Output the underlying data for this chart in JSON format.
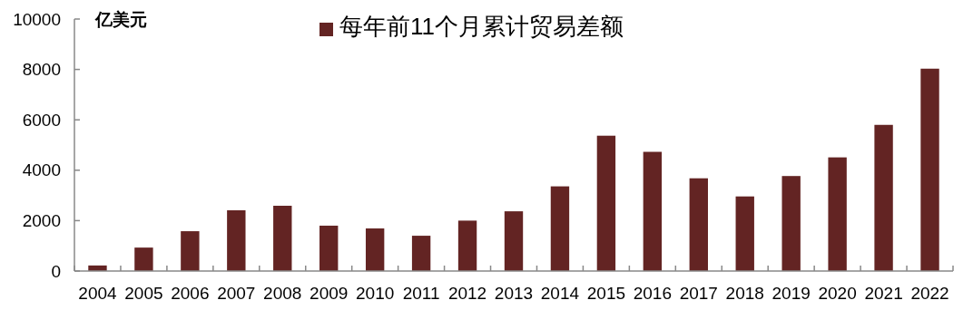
{
  "chart_data": {
    "type": "bar",
    "ylabel": "亿美元",
    "categories": [
      "2004",
      "2005",
      "2006",
      "2007",
      "2008",
      "2009",
      "2010",
      "2011",
      "2012",
      "2013",
      "2014",
      "2015",
      "2016",
      "2017",
      "2018",
      "2019",
      "2020",
      "2021",
      "2022"
    ],
    "series": [
      {
        "name": "每年前11个月累计贸易差额",
        "color": "#632423",
        "values": [
          220,
          930,
          1580,
          2410,
          2590,
          1800,
          1690,
          1400,
          2000,
          2370,
          3360,
          5370,
          4730,
          3680,
          2960,
          3770,
          4510,
          5800,
          8030
        ]
      }
    ],
    "ylim": [
      0,
      10000
    ],
    "yticks": [
      0,
      2000,
      4000,
      6000,
      8000,
      10000
    ],
    "legend": "top",
    "grid": false
  }
}
